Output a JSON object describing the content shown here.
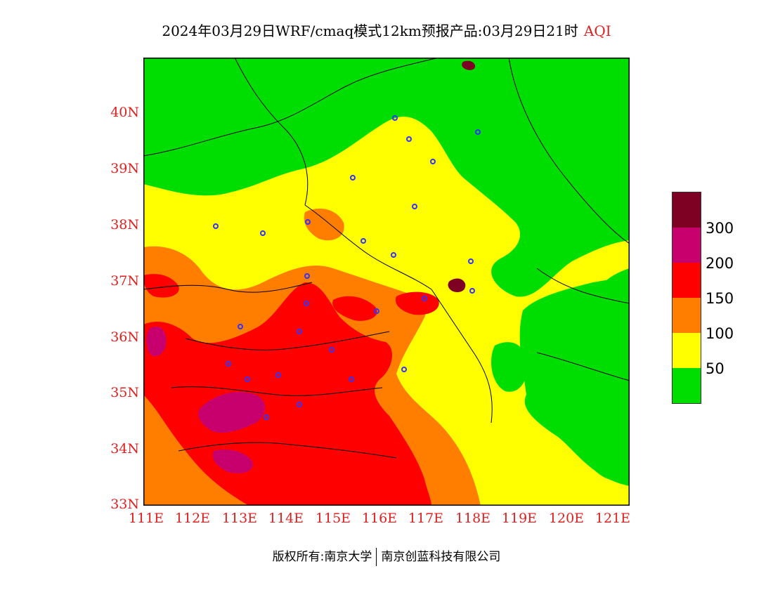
{
  "title": {
    "main": "2024年03月29日WRF/cmaq模式12km预报产品:03月29日21时",
    "product": "AQI"
  },
  "map": {
    "lat_ticks": [
      "40N",
      "39N",
      "38N",
      "37N",
      "36N",
      "35N",
      "34N",
      "33N"
    ],
    "lon_ticks": [
      "111E",
      "112E",
      "113E",
      "114E",
      "115E",
      "116E",
      "117E",
      "118E",
      "119E",
      "120E",
      "121E"
    ],
    "lat_range": [
      33,
      41
    ],
    "lon_range": [
      111,
      121.4
    ]
  },
  "legend": {
    "thresholds": [
      "300",
      "200",
      "150",
      "100",
      "50"
    ],
    "colors": {
      "good": "#00dd00",
      "moderate": "#ffff00",
      "sensitive": "#ff7e00",
      "unhealthy": "#ff0000",
      "very_unhealthy": "#c8006e",
      "hazardous": "#7e0023"
    }
  },
  "footer": {
    "left": "版权所有:南京大学",
    "right": "南京创蓝科技有限公司"
  }
}
